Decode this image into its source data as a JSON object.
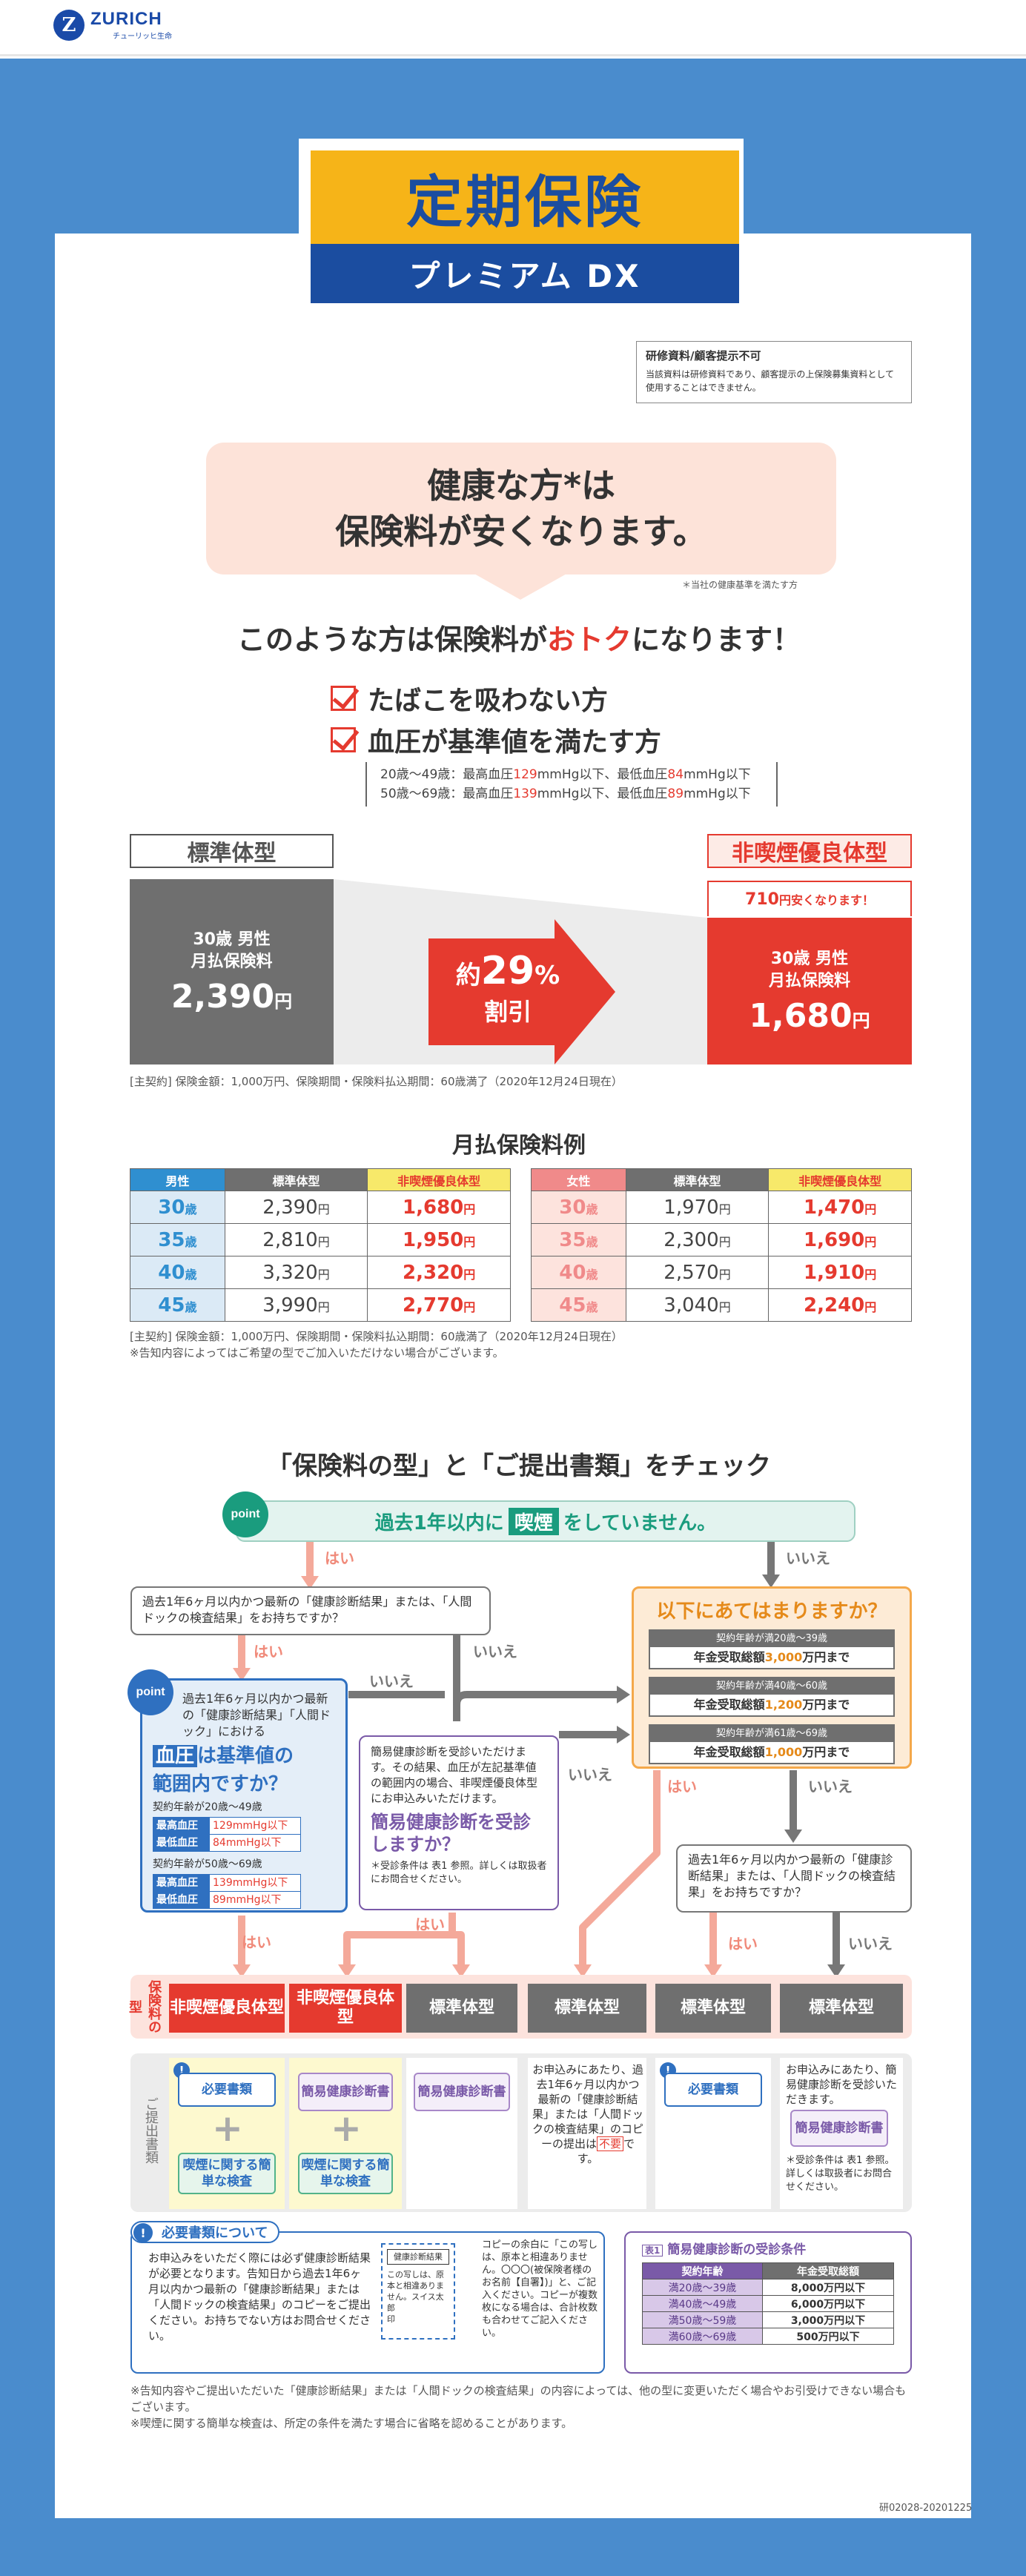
{
  "header": {
    "logo_mark": "Z",
    "logo_text": "ZURICH",
    "logo_sub": "チューリッヒ生命"
  },
  "title": {
    "main": "定期保険",
    "sub": "プレミアム DX"
  },
  "training_notice": {
    "title": "研修資料/顧客提示不可",
    "body": "当該資料は研修資料であり、顧客提示の上保険募集資料として使用することはできません。"
  },
  "headline": {
    "line1": "健康な方*は",
    "line2": "保険料が安くなります。",
    "note": "＊当社の健康基準を満たす方"
  },
  "conditions": {
    "title_pre": "このような方は保険料が",
    "title_emph": "おトク",
    "title_post": "になります！",
    "items": [
      "たばこを吸わない方",
      "血圧が基準値を満たす方"
    ],
    "bp_line1_pre": "20歳〜49歳：最高血圧",
    "bp_line1_v1": "129",
    "bp_line1_mid": "mmHg以下、最低血圧",
    "bp_line1_v2": "84",
    "bp_line1_post": "mmHg以下",
    "bp_line2_pre": "50歳〜69歳：最高血圧",
    "bp_line2_v1": "139",
    "bp_line2_mid": "mmHg以下、最低血圧",
    "bp_line2_v2": "89",
    "bp_line2_post": "mmHg以下"
  },
  "comparison": {
    "std_label": "標準体型",
    "ns_label": "非喫煙優良体型",
    "std_line1": "30歳 男性",
    "std_line2": "月払保険料",
    "std_price": "2,390",
    "ns_line1": "30歳 男性",
    "ns_line2": "月払保険料",
    "ns_price": "1,680",
    "yen": "円",
    "cheaper_amount": "710",
    "cheaper_text": "円安くなります！",
    "discount_pre": "約",
    "discount_value": "29",
    "discount_unit": "%",
    "discount_label": "割引",
    "footnote": "[主契約] 保険金額：1,000万円、保険期間・保険料払込期間：60歳満了（2020年12月24日現在）",
    "arrow_color": "#e53a2f"
  },
  "monthly": {
    "title": "月払保険料例",
    "male_header": "男性",
    "female_header": "女性",
    "std_header": "標準体型",
    "ns_header": "非喫煙優良体型",
    "age_unit": "歳",
    "yen": "円",
    "male_rows": [
      {
        "age": "30",
        "std": "2,390",
        "ns": "1,680"
      },
      {
        "age": "35",
        "std": "2,810",
        "ns": "1,950"
      },
      {
        "age": "40",
        "std": "3,320",
        "ns": "2,320"
      },
      {
        "age": "45",
        "std": "3,990",
        "ns": "2,770"
      }
    ],
    "female_rows": [
      {
        "age": "30",
        "std": "1,970",
        "ns": "1,470"
      },
      {
        "age": "35",
        "std": "2,300",
        "ns": "1,690"
      },
      {
        "age": "40",
        "std": "2,570",
        "ns": "1,910"
      },
      {
        "age": "45",
        "std": "3,040",
        "ns": "2,240"
      }
    ],
    "footnote1": "[主契約] 保険金額：1,000万円、保険期間・保険料払込期間：60歳満了（2020年12月24日現在）",
    "footnote2": "※告知内容によってはご希望の型でご加入いただけない場合がございます。"
  },
  "check": {
    "title": "「保険料の型」と「ご提出書類」をチェック",
    "point": "point",
    "smoke_pre": "過去1年以内に",
    "smoke_hl": "喫煙",
    "smoke_post": "をしていません。",
    "yes": "はい",
    "no": "いいえ",
    "q_recent": "過去1年6ヶ月以内かつ最新の「健康診断結果」または、「人間ドックの検査結果」をお持ちですか？",
    "bp_intro": "過去1年6ヶ月以内かつ最新の「健康診断結果」「人間ドック」における",
    "bp_hl": "血圧",
    "bp_q1": "は基準値の",
    "bp_q2": "範囲内ですか？",
    "bp_grp1": "契約年齢が20歳〜49歳",
    "bp_grp2": "契約年齢が50歳〜69歳",
    "bp_max": "最高血圧",
    "bp_min": "最低血圧",
    "bp_g1_max": "129mmHg以下",
    "bp_g1_min": "84mmHg以下",
    "bp_g2_max": "139mmHg以下",
    "bp_g2_min": "89mmHg以下",
    "simple_text": "簡易健康診断を受診いただけます。その結果、血圧が左記基準値の範囲内の場合、非喫煙優良体型にお申込みいただけます。",
    "simple_q": "簡易健康診断を受診しますか？",
    "simple_note": "＊受診条件は 表1 参照。詳しくは取扱者にお問合せください。",
    "orange_title": "以下にあてはまりますか？",
    "orange_items": [
      {
        "h": "契約年齢が満20歳〜39歳",
        "pre": "年金受取総額",
        "v": "3,000",
        "post": "万円まで"
      },
      {
        "h": "契約年齢が満40歳〜60歳",
        "pre": "年金受取総額",
        "v": "1,200",
        "post": "万円まで"
      },
      {
        "h": "契約年齢が満61歳〜69歳",
        "pre": "年金受取総額",
        "v": "1,000",
        "post": "万円まで"
      }
    ],
    "q_recent2": "過去1年6ヶ月以内かつ最新の「健康診断結果」または、「人間ドックの検査結果」をお持ちですか？",
    "type_row_label": "保険料の型",
    "docs_row_label": "ご提出書類",
    "types": [
      "非喫煙優良体型",
      "非喫煙優良体型",
      "標準体型",
      "標準体型",
      "標準体型",
      "標準体型"
    ],
    "doc_required": "必要書類",
    "doc_simple": "簡易健康診断書",
    "doc_smoke": "喫煙に関する簡単な検査",
    "doc_text4": "お申込みにあたり、過去1年6ヶ月以内かつ最新の「健康診断結果」または「人間ドックの検査結果」のコピーの提出は",
    "doc_text4_neg": "不要",
    "doc_text4_post": "です。",
    "doc_text6": "お申込みにあたり、簡易健康診断を受診いただきます。",
    "doc_text6_note": "＊受診条件は 表1 参照。詳しくは取扱者にお問合せください。"
  },
  "required_docs": {
    "title": "必要書類について",
    "body": "お申込みをいただく際には必ず健康診断結果が必要となります。告知日から過去1年6ヶ月以内かつ最新の「健康診断結果」または「人間ドックの検査結果」のコピーをご提出ください。お持ちでない方はお問合せください。",
    "stamp_title": "健康診断結果",
    "stamp_body": "この写しは、原本と相違ありません。スイス太郎",
    "stamp_seal": "印",
    "note": "コピーの余白に「この写しは、原本と相違ありません。〇〇〇(被保険者様のお名前【自署】)」と、ご記入ください。コピーが複数枚になる場合は、合計枚数も合わせてご記入ください。"
  },
  "table1": {
    "tag": "表1",
    "title": "簡易健康診断の受診条件",
    "h1": "契約年齢",
    "h2": "年金受取総額",
    "rows": [
      {
        "age": "満20歳〜39歳",
        "amt": "8,000万円以下"
      },
      {
        "age": "満40歳〜49歳",
        "amt": "6,000万円以下"
      },
      {
        "age": "満50歳〜59歳",
        "amt": "3,000万円以下"
      },
      {
        "age": "満60歳〜69歳",
        "amt": "500万円以下"
      }
    ]
  },
  "footer": {
    "note1": "※告知内容やご提出いただいた「健康診断結果」または「人間ドックの検査結果」の内容によっては、他の型に変更いただく場合やお引受けできない場合もございます。",
    "note2": "※喫煙に関する簡単な検査は、所定の条件を満たす場合に省略を認めることがあります。",
    "code": "研02028-20201225"
  },
  "colors": {
    "brand_blue": "#1b4da0",
    "accent_yellow": "#f6b418",
    "accent_red": "#e53a2f",
    "bg_blue": "#4a8ccd"
  }
}
